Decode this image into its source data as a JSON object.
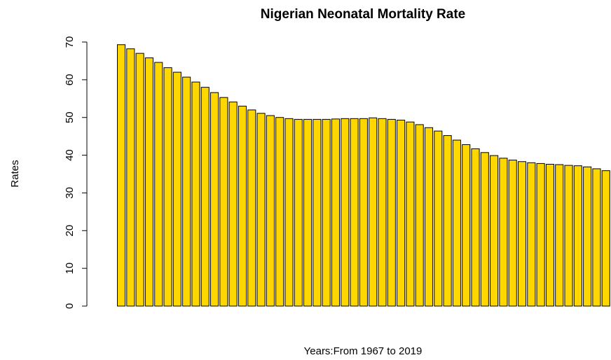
{
  "chart_data": {
    "type": "bar",
    "title": "Nigerian Neonatal Mortality Rate",
    "x_label": "Years:From 1967 to 2019",
    "y_label": "Rates",
    "values": [
      69.3,
      68.2,
      67.0,
      65.8,
      64.6,
      63.2,
      62.0,
      60.7,
      59.4,
      58.0,
      56.6,
      55.3,
      54.1,
      53.0,
      52.0,
      51.1,
      50.5,
      50.0,
      49.7,
      49.5,
      49.5,
      49.5,
      49.5,
      49.6,
      49.7,
      49.7,
      49.7,
      49.9,
      49.7,
      49.5,
      49.3,
      48.8,
      48.1,
      47.3,
      46.4,
      45.2,
      44.0,
      42.8,
      41.7,
      40.7,
      39.9,
      39.2,
      38.7,
      38.3,
      38.0,
      37.8,
      37.6,
      37.5,
      37.3,
      37.2,
      36.9,
      36.4,
      35.9
    ],
    "color": "#FFD700",
    "ylim": [
      0,
      70
    ],
    "yticks": [
      0,
      10,
      20,
      30,
      40,
      50,
      60,
      70
    ]
  }
}
